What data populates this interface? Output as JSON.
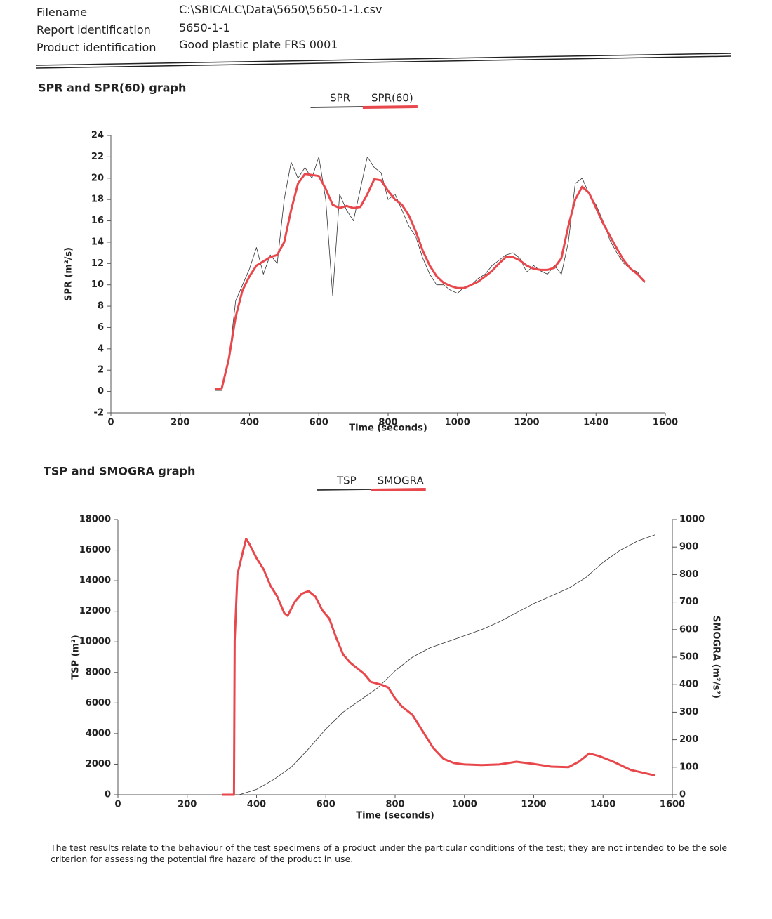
{
  "header": {
    "rows": [
      [
        "Filename",
        "C:\\SBICALC\\Data\\5650\\5650-1-1.csv"
      ],
      [
        "Report identification",
        "5650-1-1"
      ],
      [
        "Product identification",
        "Good plastic plate FRS 0001"
      ]
    ]
  },
  "chart_data": [
    {
      "type": "line",
      "title": "SPR and SPR(60) graph",
      "xlabel": "Time (seconds)",
      "ylabel": "SPR (m²/s)",
      "xlim": [
        0,
        1600
      ],
      "xticks": [
        0,
        200,
        400,
        600,
        800,
        1000,
        1200,
        1400,
        1600
      ],
      "ylim": [
        -2,
        24
      ],
      "yticks": [
        -2,
        0,
        2,
        4,
        6,
        8,
        10,
        12,
        14,
        16,
        18,
        20,
        22,
        24
      ],
      "series": [
        {
          "name": "SPR",
          "color": "#333333",
          "x": [
            300,
            320,
            340,
            360,
            380,
            400,
            420,
            440,
            460,
            480,
            500,
            520,
            540,
            560,
            580,
            600,
            620,
            640,
            660,
            680,
            700,
            720,
            740,
            760,
            780,
            800,
            820,
            840,
            860,
            880,
            900,
            920,
            940,
            960,
            980,
            1000,
            1020,
            1040,
            1060,
            1080,
            1100,
            1120,
            1140,
            1160,
            1180,
            1200,
            1220,
            1240,
            1260,
            1280,
            1300,
            1320,
            1340,
            1360,
            1380,
            1400,
            1420,
            1440,
            1460,
            1480,
            1500,
            1520,
            1540
          ],
          "values": [
            0.1,
            0.1,
            2.8,
            8.5,
            10,
            11.5,
            13.5,
            11,
            12.8,
            12,
            18,
            21.5,
            20,
            21,
            20,
            22,
            18,
            9,
            18.5,
            17,
            16,
            19,
            22,
            21,
            20.5,
            18,
            18.5,
            17,
            15.5,
            14.5,
            12.5,
            11,
            10,
            10,
            9.5,
            9.2,
            9.8,
            10,
            10.6,
            11,
            11.8,
            12.3,
            12.8,
            13,
            12.5,
            11.2,
            11.8,
            11.3,
            11,
            11.8,
            11,
            14,
            19.5,
            20,
            18.5,
            17.5,
            16,
            14.2,
            13,
            12,
            11.5,
            11.2,
            10.2
          ]
        },
        {
          "name": "SPR(60)",
          "color": "#e8474c",
          "x": [
            300,
            320,
            340,
            360,
            380,
            400,
            420,
            440,
            460,
            480,
            500,
            520,
            540,
            560,
            580,
            600,
            620,
            640,
            660,
            680,
            700,
            720,
            740,
            760,
            780,
            800,
            820,
            840,
            860,
            880,
            900,
            920,
            940,
            960,
            980,
            1000,
            1020,
            1040,
            1060,
            1080,
            1100,
            1120,
            1140,
            1160,
            1180,
            1200,
            1220,
            1240,
            1260,
            1280,
            1300,
            1320,
            1340,
            1360,
            1380,
            1400,
            1420,
            1440,
            1460,
            1480,
            1500,
            1520,
            1540
          ],
          "values": [
            0.2,
            0.3,
            3,
            7,
            9.5,
            10.8,
            11.8,
            12.2,
            12.6,
            12.8,
            14,
            17,
            19.5,
            20.4,
            20.3,
            20.2,
            19,
            17.5,
            17.2,
            17.4,
            17.2,
            17.3,
            18.5,
            19.9,
            19.8,
            18.8,
            18,
            17.5,
            16.5,
            15,
            13.2,
            11.8,
            10.8,
            10.2,
            9.9,
            9.7,
            9.7,
            10,
            10.3,
            10.8,
            11.3,
            12,
            12.6,
            12.6,
            12.3,
            11.8,
            11.5,
            11.4,
            11.4,
            11.6,
            12.5,
            15.5,
            18,
            19.2,
            18.6,
            17.2,
            15.8,
            14.6,
            13.4,
            12.3,
            11.5,
            11,
            10.3
          ]
        }
      ]
    },
    {
      "type": "line",
      "title": "TSP and SMOGRA graph",
      "xlabel": "Time (seconds)",
      "ylabel": "TSP (m²)",
      "y2label": "SMOGRA (m²/s²)",
      "xlim": [
        0,
        1600
      ],
      "xticks": [
        0,
        200,
        400,
        600,
        800,
        1000,
        1200,
        1400,
        1600
      ],
      "ylim": [
        0,
        18000
      ],
      "yticks": [
        0,
        2000,
        4000,
        6000,
        8000,
        10000,
        12000,
        14000,
        16000,
        18000
      ],
      "y2lim": [
        0,
        1000
      ],
      "y2ticks": [
        0,
        100,
        200,
        300,
        400,
        500,
        600,
        700,
        800,
        900,
        1000
      ],
      "series": [
        {
          "name": "TSP",
          "color": "#333333",
          "x": [
            300,
            350,
            400,
            450,
            500,
            550,
            600,
            650,
            700,
            750,
            800,
            850,
            900,
            950,
            1000,
            1050,
            1100,
            1150,
            1200,
            1250,
            1300,
            1350,
            1400,
            1450,
            1500,
            1550
          ],
          "values": [
            0,
            0,
            350,
            1000,
            1800,
            3000,
            4300,
            5400,
            6200,
            7000,
            8100,
            9000,
            9600,
            10000,
            10400,
            10800,
            11300,
            11900,
            12500,
            13000,
            13500,
            14200,
            15200,
            16000,
            16600,
            17000
          ]
        },
        {
          "name": "SMOGRA",
          "color": "#e8474c",
          "axis": "y2",
          "x": [
            300,
            335,
            337,
            345,
            360,
            370,
            380,
            400,
            420,
            440,
            460,
            480,
            490,
            510,
            530,
            550,
            570,
            590,
            610,
            630,
            650,
            670,
            690,
            710,
            730,
            760,
            780,
            800,
            820,
            850,
            880,
            910,
            940,
            970,
            1000,
            1050,
            1100,
            1150,
            1200,
            1250,
            1300,
            1330,
            1360,
            1390,
            1430,
            1480,
            1550
          ],
          "values": [
            0,
            0,
            560,
            800,
            880,
            930,
            910,
            860,
            820,
            760,
            720,
            660,
            650,
            700,
            730,
            740,
            720,
            670,
            640,
            570,
            510,
            480,
            460,
            440,
            410,
            400,
            390,
            350,
            320,
            290,
            230,
            170,
            130,
            115,
            110,
            108,
            110,
            120,
            112,
            102,
            100,
            120,
            150,
            140,
            120,
            90,
            70
          ]
        }
      ]
    }
  ],
  "footer": "The test results relate to the behaviour of the test specimens of a product under the particular conditions of the test; they are not intended to be the sole criterion for assessing the potential fire hazard of the product in use."
}
